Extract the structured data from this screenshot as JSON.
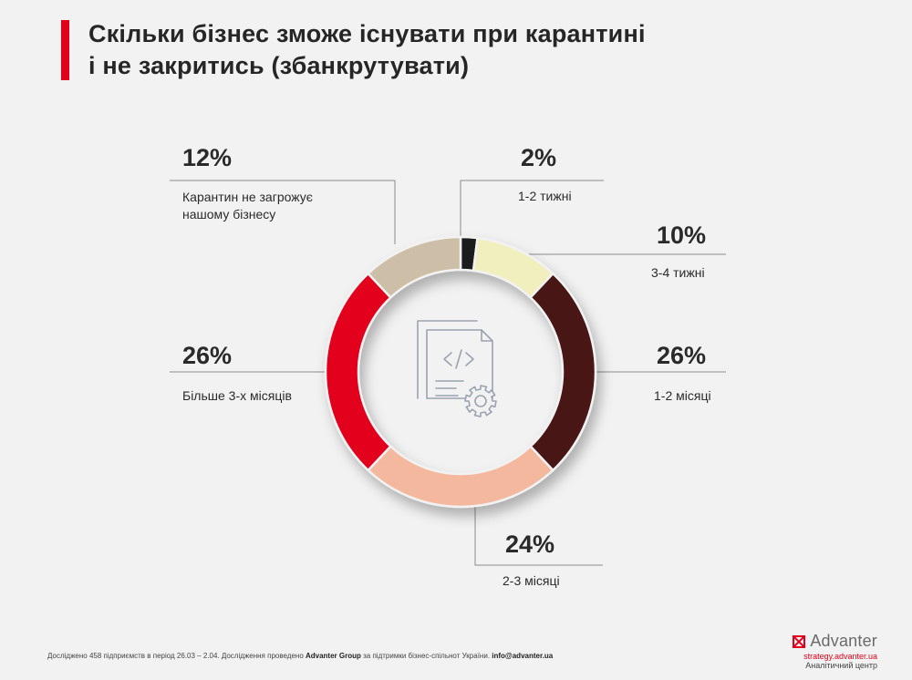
{
  "header": {
    "title_line1": "Скільки бізнес зможе існувати при карантині",
    "title_line2": "і не закритись (збанкрутувати)"
  },
  "colors": {
    "accent": "#e3001b",
    "background": "#f2f2f2",
    "leader": "#8c8c8c",
    "icon": "#9aa3b1"
  },
  "center_icon": "code-document-gear-icon",
  "chart_data": {
    "type": "pie",
    "variant": "donut",
    "slices": [
      {
        "label": "1-2 тижні",
        "value": 2,
        "value_label": "2%",
        "color": "#1c1c1c"
      },
      {
        "label": "3-4 тижні",
        "value": 10,
        "value_label": "10%",
        "color": "#f2efbf"
      },
      {
        "label": "1-2 місяці",
        "value": 26,
        "value_label": "26%",
        "color": "#4a1315"
      },
      {
        "label": "2-3 місяці",
        "value": 24,
        "value_label": "24%",
        "color": "#f4b89e"
      },
      {
        "label": "Більше 3-х місяців",
        "value": 26,
        "value_label": "26%",
        "color": "#e3001b"
      },
      {
        "label": [
          "Карантин не загрожує",
          "нашому бізнесу"
        ],
        "value": 12,
        "value_label": "12%",
        "color": "#cdbfa7"
      }
    ]
  },
  "footer": {
    "note_pre": "Досліджено 458 підприємств в період 26.03 – 2.04. Дослідження проведено ",
    "note_company": "Advanter Group",
    "note_mid": " за підтримки бізнес-спільнот України. ",
    "note_email": "info@advanter.ua",
    "brand_name": "Advanter",
    "brand_url": "strategy.advanter.ua",
    "brand_sub": "Аналітичний центр"
  }
}
